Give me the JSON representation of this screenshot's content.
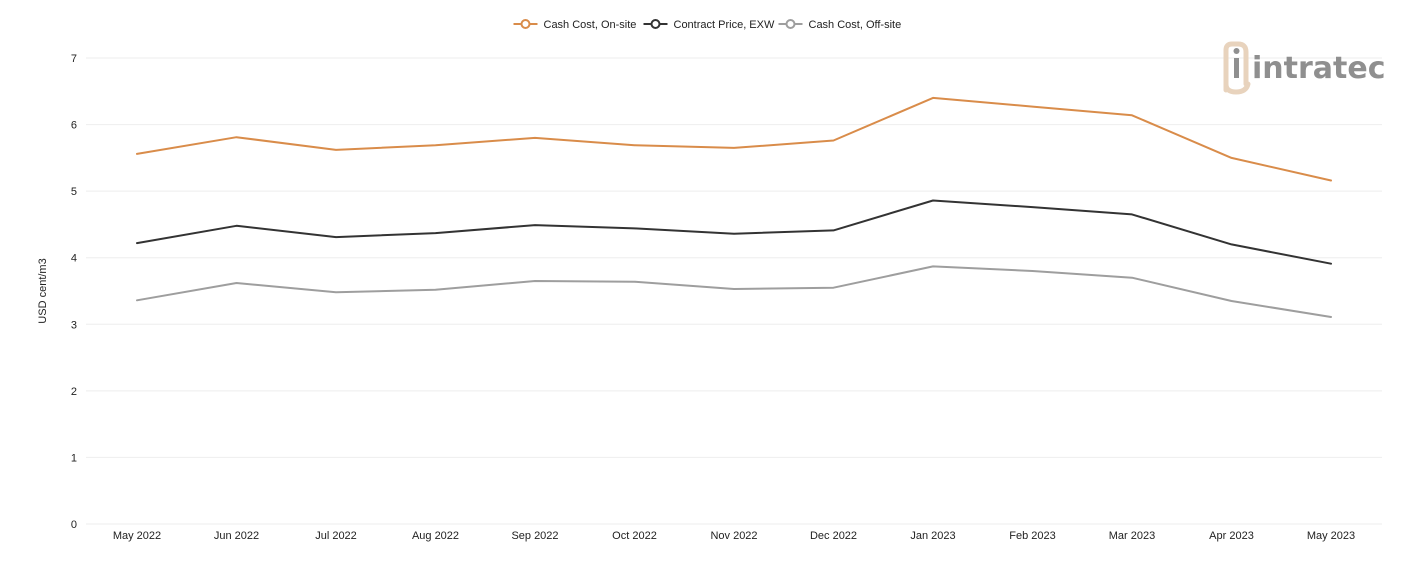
{
  "logo": {
    "text": "intratec",
    "accent": "#e8d3bd",
    "color": "#8f8f8f"
  },
  "chart_data": {
    "type": "line",
    "title": "",
    "xlabel": "",
    "ylabel": "USD cent/m3",
    "ylim": [
      0,
      7
    ],
    "yticks": [
      "0",
      "1",
      "2",
      "3",
      "4",
      "5",
      "6",
      "7"
    ],
    "grid": true,
    "legend_position": "top-center",
    "categories": [
      "May 2022",
      "Jun 2022",
      "Jul 2022",
      "Aug 2022",
      "Sep 2022",
      "Oct 2022",
      "Nov 2022",
      "Dec 2022",
      "Jan 2023",
      "Feb 2023",
      "Mar 2023",
      "Apr 2023",
      "May 2023"
    ],
    "series": [
      {
        "name": "Cash Cost, On-site",
        "color": "#d98c4a",
        "values": [
          5.56,
          5.81,
          5.62,
          5.69,
          5.8,
          5.69,
          5.65,
          5.76,
          6.4,
          6.27,
          6.14,
          5.5,
          5.16
        ]
      },
      {
        "name": "Contract Price, EXW",
        "color": "#333333",
        "values": [
          4.22,
          4.48,
          4.31,
          4.37,
          4.49,
          4.44,
          4.36,
          4.41,
          4.86,
          4.76,
          4.65,
          4.2,
          3.91
        ]
      },
      {
        "name": "Cash Cost, Off-site",
        "color": "#9e9e9e",
        "values": [
          3.36,
          3.62,
          3.48,
          3.52,
          3.65,
          3.64,
          3.53,
          3.55,
          3.87,
          3.8,
          3.7,
          3.35,
          3.11
        ]
      }
    ]
  }
}
